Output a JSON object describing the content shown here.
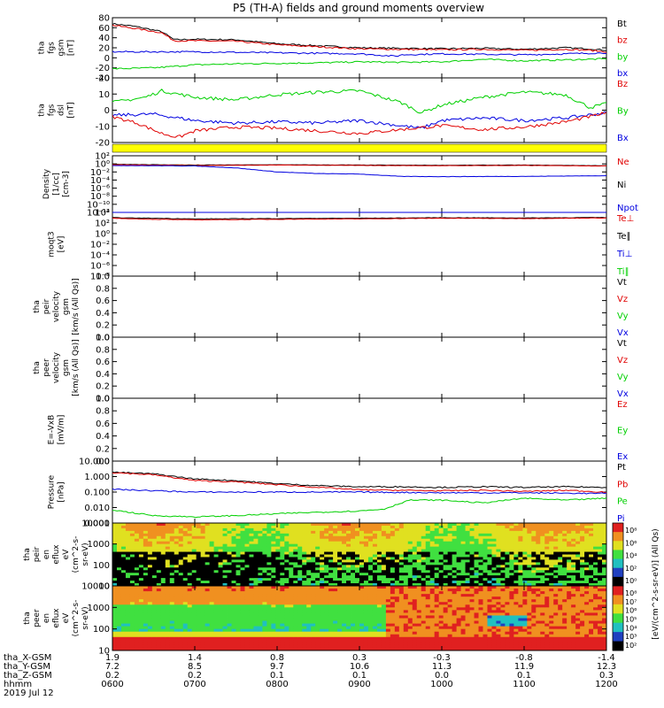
{
  "title": "P5 (TH-A) fields and ground moments overview",
  "date_label": "2019 Jul 12",
  "orbit_rows": [
    {
      "label": "tha_X-GSM",
      "values": [
        "1.9",
        "1.4",
        "0.8",
        "0.3",
        "-0.3",
        "-0.8",
        "-1.4"
      ]
    },
    {
      "label": "tha_Y-GSM",
      "values": [
        "7.2",
        "8.5",
        "9.7",
        "10.6",
        "11.3",
        "11.9",
        "12.3"
      ]
    },
    {
      "label": "tha_Z-GSM",
      "values": [
        "0.2",
        "0.2",
        "0.1",
        "0.1",
        "0.0",
        "0.1",
        "0.3"
      ]
    },
    {
      "label": "hhmm",
      "values": [
        "0600",
        "0700",
        "0800",
        "0900",
        "1000",
        "1100",
        "1200"
      ]
    }
  ],
  "colors": {
    "black": "#000000",
    "red": "#e00000",
    "green": "#00d000",
    "blue": "#0000e0",
    "yellow": "#ffff00"
  },
  "chart_data": [
    {
      "type": "line",
      "ylabel": [
        "tha",
        "fgs",
        "gsm",
        "[nT]"
      ],
      "ylim": [
        -40,
        80
      ],
      "yticks": [
        "80",
        "60",
        "40",
        "20",
        "0",
        "-20",
        "-40"
      ],
      "legend": [
        {
          "name": "Bt",
          "color": "#000000"
        },
        {
          "name": "bz",
          "color": "#e00000"
        },
        {
          "name": "by",
          "color": "#00d000"
        },
        {
          "name": "bx",
          "color": "#0000e0"
        }
      ],
      "series": [
        {
          "name": "Bt",
          "color": "#000000",
          "x": [
            6.0,
            6.3,
            6.6,
            6.75,
            7.0,
            7.5,
            8.0,
            8.5,
            9.0,
            9.5,
            10.0,
            10.5,
            11.0,
            11.5,
            11.8,
            12.0
          ],
          "y": [
            68,
            62,
            52,
            36,
            37,
            36,
            28,
            24,
            20,
            19,
            18,
            19,
            17,
            20,
            18,
            15
          ]
        },
        {
          "name": "bz",
          "color": "#e00000",
          "x": [
            6.0,
            6.3,
            6.6,
            6.75,
            7.0,
            7.5,
            8.0,
            8.5,
            9.0,
            9.5,
            10.0,
            10.5,
            11.0,
            11.5,
            11.8,
            12.0
          ],
          "y": [
            65,
            58,
            50,
            34,
            34,
            33,
            26,
            22,
            18,
            17,
            16,
            17,
            15,
            17,
            15,
            12
          ]
        },
        {
          "name": "by",
          "color": "#00d000",
          "x": [
            6.0,
            6.5,
            7.0,
            7.5,
            8.0,
            8.5,
            9.0,
            9.5,
            10.0,
            10.5,
            11.0,
            11.5,
            12.0
          ],
          "y": [
            -22,
            -20,
            -14,
            -12,
            -11,
            -10,
            -8,
            -9,
            -8,
            -3,
            -6,
            -4,
            -2
          ]
        },
        {
          "name": "bx",
          "color": "#0000e0",
          "x": [
            6.0,
            7.0,
            8.0,
            9.0,
            9.45,
            9.5,
            10.0,
            11.0,
            12.0
          ],
          "y": [
            12,
            12,
            10,
            8,
            3,
            6,
            8,
            6,
            10
          ]
        }
      ]
    },
    {
      "type": "line",
      "ylabel": [
        "tha",
        "fgs",
        "dsl",
        "[nT]"
      ],
      "ylim": [
        -25,
        25
      ],
      "yticks": [
        "20",
        "10",
        "0",
        "-10",
        "-20"
      ],
      "legend": [
        {
          "name": "Bz",
          "color": "#e00000"
        },
        {
          "name": "By",
          "color": "#00d000"
        },
        {
          "name": "Bx",
          "color": "#0000e0"
        }
      ],
      "series": [
        {
          "name": "By",
          "color": "#00d000",
          "x": [
            6.0,
            6.4,
            6.6,
            7.0,
            7.5,
            8.0,
            8.5,
            9.0,
            9.5,
            9.75,
            10.0,
            10.5,
            11.0,
            11.5,
            11.8,
            12.0
          ],
          "y": [
            6,
            10,
            15,
            10,
            8,
            12,
            14,
            15,
            6,
            -2,
            4,
            10,
            14,
            12,
            2,
            5
          ]
        },
        {
          "name": "Bx",
          "color": "#0000e0",
          "x": [
            6.0,
            6.5,
            7.0,
            7.5,
            8.0,
            8.5,
            9.0,
            9.5,
            9.75,
            10.0,
            10.5,
            11.0,
            11.5,
            12.0
          ],
          "y": [
            -4,
            -3,
            -8,
            -10,
            -9,
            -10,
            -8,
            -12,
            -14,
            -8,
            -6,
            -8,
            -6,
            -2
          ]
        },
        {
          "name": "Bz",
          "color": "#e00000",
          "x": [
            6.0,
            6.3,
            6.6,
            6.8,
            7.0,
            7.5,
            8.0,
            8.5,
            9.0,
            9.5,
            10.0,
            10.5,
            11.0,
            11.5,
            11.8,
            12.0
          ],
          "y": [
            -5,
            -10,
            -18,
            -21,
            -16,
            -13,
            -14,
            -16,
            -18,
            -15,
            -12,
            -15,
            -13,
            -9,
            -5,
            -2
          ]
        }
      ]
    },
    {
      "type": "line",
      "ylabel": [
        "Density",
        "[1/cc]",
        "[cm-3]"
      ],
      "yticks": [
        "10²",
        "10⁰",
        "10⁻²",
        "10⁻⁴",
        "10⁻⁶",
        "10⁻⁸",
        "10⁻¹⁰",
        "10⁻¹²"
      ],
      "legend": [
        {
          "name": "Ne",
          "color": "#e00000"
        },
        {
          "name": "Ni",
          "color": "#000000"
        },
        {
          "name": "Npot",
          "color": "#0000e0"
        }
      ],
      "series": [
        {
          "name": "Ni",
          "color": "#000000",
          "x": [
            6.0,
            7.0,
            8.0,
            9.0,
            10.0,
            11.0,
            12.0
          ],
          "y": [
            0.8,
            0.5,
            0.6,
            0.5,
            0.45,
            0.5,
            0.35
          ]
        },
        {
          "name": "Ne",
          "color": "#e00000",
          "x": [
            6.0,
            7.0,
            8.0,
            9.0,
            10.0,
            11.0,
            12.0
          ],
          "y": [
            0.6,
            0.4,
            0.5,
            0.4,
            0.35,
            0.4,
            0.3
          ]
        },
        {
          "name": "Npot",
          "color": "#0000e0",
          "x": [
            6.0,
            7.0,
            7.5,
            8.0,
            8.5,
            9.0,
            9.5,
            10.0,
            11.0,
            12.0
          ],
          "y": [
            0.4,
            0.3,
            0.1,
            0.01,
            0.004,
            0.003,
            0.0008,
            0.0007,
            0.0008,
            0.0012
          ]
        }
      ]
    },
    {
      "type": "line",
      "ylabel": [
        "moqt3",
        "[eV]"
      ],
      "yticks": [
        "10⁴",
        "10²",
        "10⁰",
        "10⁻²",
        "10⁻⁴",
        "10⁻⁶",
        "10⁻⁸"
      ],
      "legend": [
        {
          "name": "Te⊥",
          "color": "#e00000"
        },
        {
          "name": "Te∥",
          "color": "#000000"
        },
        {
          "name": "Ti⊥",
          "color": "#0000e0"
        },
        {
          "name": "Ti∥",
          "color": "#00d000"
        }
      ],
      "series": [
        {
          "name": "Ti∥",
          "color": "#00d000",
          "x": [
            6.0,
            8.0,
            10.0,
            12.0
          ],
          "y": [
            40000,
            40000,
            40000,
            40000
          ]
        },
        {
          "name": "Ti⊥",
          "color": "#0000e0",
          "x": [
            6.0,
            8.0,
            10.0,
            12.0
          ],
          "y": [
            35000,
            35000,
            35000,
            35000
          ]
        },
        {
          "name": "Te∥",
          "color": "#000000",
          "x": [
            6.0,
            6.5,
            7.0,
            8.0,
            9.0,
            10.0,
            11.0,
            12.0
          ],
          "y": [
            1000,
            800,
            600,
            700,
            800,
            1000,
            900,
            1100
          ]
        },
        {
          "name": "Te⊥",
          "color": "#e00000",
          "x": [
            6.0,
            6.5,
            7.0,
            8.0,
            9.0,
            10.0,
            11.0,
            12.0
          ],
          "y": [
            800,
            500,
            400,
            500,
            600,
            800,
            700,
            900
          ]
        }
      ]
    },
    {
      "type": "line",
      "ylabel": [
        "tha",
        "peir",
        "velocity",
        "gsm",
        "[km/s (All Qs)]"
      ],
      "ylim": [
        0,
        1
      ],
      "yticks": [
        "1.0",
        "0.8",
        "0.6",
        "0.4",
        "0.2",
        "0.0"
      ],
      "legend": [
        {
          "name": "Vt",
          "color": "#000000"
        },
        {
          "name": "Vz",
          "color": "#e00000"
        },
        {
          "name": "Vy",
          "color": "#00d000"
        },
        {
          "name": "Vx",
          "color": "#0000e0"
        }
      ],
      "series": []
    },
    {
      "type": "line",
      "ylabel": [
        "tha",
        "peer",
        "velocity",
        "gsm",
        "[km/s (All Qs)]"
      ],
      "ylim": [
        0,
        1
      ],
      "yticks": [
        "1.0",
        "0.8",
        "0.6",
        "0.4",
        "0.2",
        "0.0"
      ],
      "legend": [
        {
          "name": "Vt",
          "color": "#000000"
        },
        {
          "name": "Vz",
          "color": "#e00000"
        },
        {
          "name": "Vy",
          "color": "#00d000"
        },
        {
          "name": "Vx",
          "color": "#0000e0"
        }
      ],
      "series": []
    },
    {
      "type": "line",
      "ylabel": [
        "E=-VxB",
        "[mV/m]"
      ],
      "ylim": [
        0,
        1
      ],
      "yticks": [
        "1.0",
        "0.8",
        "0.6",
        "0.4",
        "0.2",
        "0.0"
      ],
      "legend": [
        {
          "name": "Ez",
          "color": "#e00000"
        },
        {
          "name": "Ey",
          "color": "#00d000"
        },
        {
          "name": "Ex",
          "color": "#0000e0"
        }
      ],
      "series": []
    },
    {
      "type": "line",
      "ylabel": [
        "Pressure",
        "[nPa]"
      ],
      "yticks": [
        "10.000",
        "1.000",
        "0.100",
        "0.010",
        "0.001"
      ],
      "legend": [
        {
          "name": "Pt",
          "color": "#000000"
        },
        {
          "name": "Pb",
          "color": "#e00000"
        },
        {
          "name": "Pe",
          "color": "#00d000"
        },
        {
          "name": "Pi",
          "color": "#0000e0"
        }
      ],
      "series": [
        {
          "name": "Pt",
          "color": "#000000",
          "x": [
            6.0,
            6.5,
            7.0,
            7.5,
            8.0,
            8.5,
            9.0,
            9.5,
            10.0,
            10.5,
            11.0,
            11.5,
            12.0
          ],
          "y": [
            1.9,
            1.5,
            0.7,
            0.55,
            0.35,
            0.26,
            0.22,
            0.22,
            0.2,
            0.22,
            0.2,
            0.22,
            0.2
          ]
        },
        {
          "name": "Pb",
          "color": "#e00000",
          "x": [
            6.0,
            6.5,
            7.0,
            7.5,
            8.0,
            8.5,
            9.0,
            9.5,
            10.0,
            10.5,
            11.0,
            11.5,
            12.0
          ],
          "y": [
            1.8,
            1.3,
            0.55,
            0.45,
            0.3,
            0.2,
            0.14,
            0.13,
            0.12,
            0.13,
            0.11,
            0.13,
            0.1
          ]
        },
        {
          "name": "Pi",
          "color": "#0000e0",
          "x": [
            6.0,
            7.0,
            8.0,
            9.0,
            10.0,
            11.0,
            12.0
          ],
          "y": [
            0.15,
            0.1,
            0.1,
            0.1,
            0.09,
            0.09,
            0.08
          ]
        },
        {
          "name": "Pe",
          "color": "#00d000",
          "x": [
            6.0,
            6.5,
            7.0,
            7.5,
            8.0,
            8.5,
            9.0,
            9.3,
            9.6,
            10.0,
            10.5,
            11.0,
            11.5,
            12.0
          ],
          "y": [
            0.007,
            0.003,
            0.0025,
            0.003,
            0.004,
            0.005,
            0.006,
            0.008,
            0.03,
            0.03,
            0.02,
            0.04,
            0.03,
            0.04
          ]
        }
      ]
    },
    {
      "type": "heatmap",
      "ylabel": [
        "tha",
        "peir",
        "en",
        "eflux",
        "eV",
        "(cm^2-s-",
        "sr-eV)"
      ],
      "yticks": [
        "10000",
        "1000",
        "100",
        "10"
      ],
      "colorbar_label": "[eV/(cm^2-s-sr-eV)] (All Qs)",
      "colorbar_ticks": [
        "10⁸",
        "10⁶",
        "10⁴",
        "10²",
        "10⁰"
      ]
    },
    {
      "type": "heatmap",
      "ylabel": [
        "tha",
        "peer",
        "en",
        "eflux",
        "eV",
        "(cm^2-s-",
        "sr-eV)"
      ],
      "yticks": [
        "10000",
        "1000",
        "100",
        "10"
      ],
      "colorbar_label": "[eV/(cm^2-s-sr-eV)] (All Qs)",
      "colorbar_ticks": [
        "10⁸",
        "10⁷",
        "10⁶",
        "10⁵",
        "10⁴",
        "10³",
        "10²"
      ]
    }
  ]
}
